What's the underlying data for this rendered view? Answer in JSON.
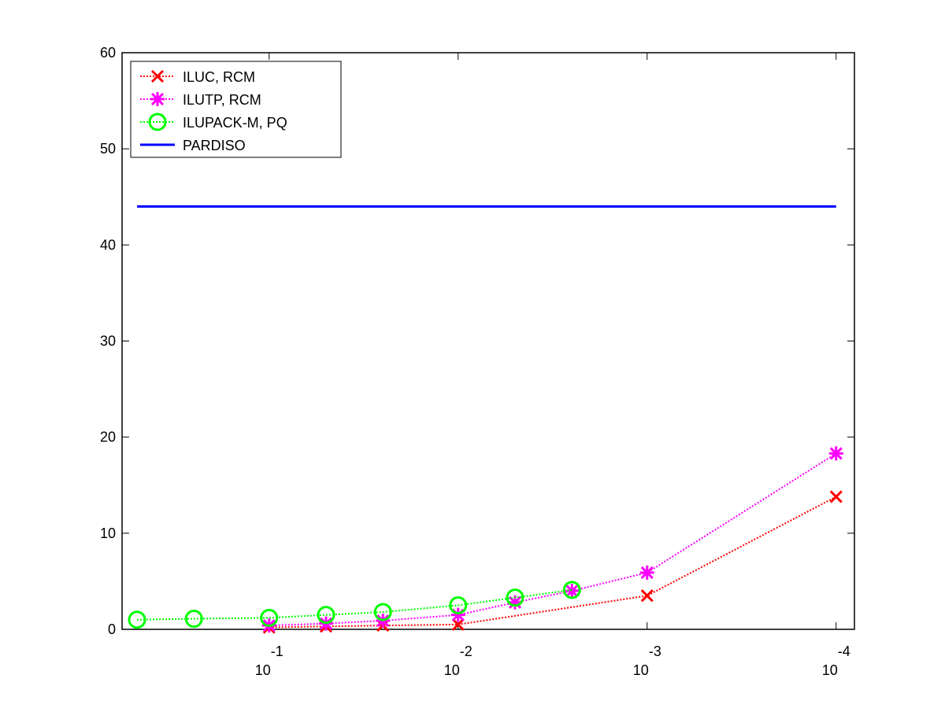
{
  "chart_data": {
    "type": "line",
    "xscale": "log",
    "xreversed": true,
    "xlim": [
      0.6,
      8e-05
    ],
    "ylim": [
      0,
      60
    ],
    "xticks": [
      {
        "value": 0.1,
        "label": "10",
        "exponent": "-1"
      },
      {
        "value": 0.01,
        "label": "10",
        "exponent": "-2"
      },
      {
        "value": 0.001,
        "label": "10",
        "exponent": "-3"
      },
      {
        "value": 0.0001,
        "label": "10",
        "exponent": "-4"
      }
    ],
    "yticks": [
      0,
      10,
      20,
      30,
      40,
      50,
      60
    ],
    "legend": "upper left",
    "series": [
      {
        "name": "ILUC, RCM",
        "color": "#ff0000",
        "marker": "x",
        "linestyle": "dotted",
        "x": [
          0.1,
          0.05,
          0.025,
          0.01,
          0.001,
          0.0001
        ],
        "values": [
          0.2,
          0.3,
          0.4,
          0.5,
          3.5,
          13.8
        ]
      },
      {
        "name": "ILUTP, RCM",
        "color": "#ff00ff",
        "marker": "asterisk",
        "linestyle": "dotted",
        "x": [
          0.1,
          0.05,
          0.025,
          0.01,
          0.005,
          0.0025,
          0.001,
          0.0001
        ],
        "values": [
          0.4,
          0.6,
          0.9,
          1.5,
          2.8,
          4.0,
          5.9,
          18.3
        ]
      },
      {
        "name": "ILUPACK-M, PQ",
        "color": "#00ff00",
        "marker": "circle",
        "linestyle": "dotted",
        "x": [
          0.5,
          0.25,
          0.1,
          0.05,
          0.025,
          0.01,
          0.005,
          0.0025
        ],
        "values": [
          1.0,
          1.1,
          1.2,
          1.5,
          1.8,
          2.5,
          3.3,
          4.1
        ]
      },
      {
        "name": "PARDISO",
        "color": "#0000ff",
        "marker": "none",
        "linestyle": "solid",
        "x": [
          0.5,
          0.0001
        ],
        "values": [
          44,
          44
        ]
      }
    ]
  }
}
